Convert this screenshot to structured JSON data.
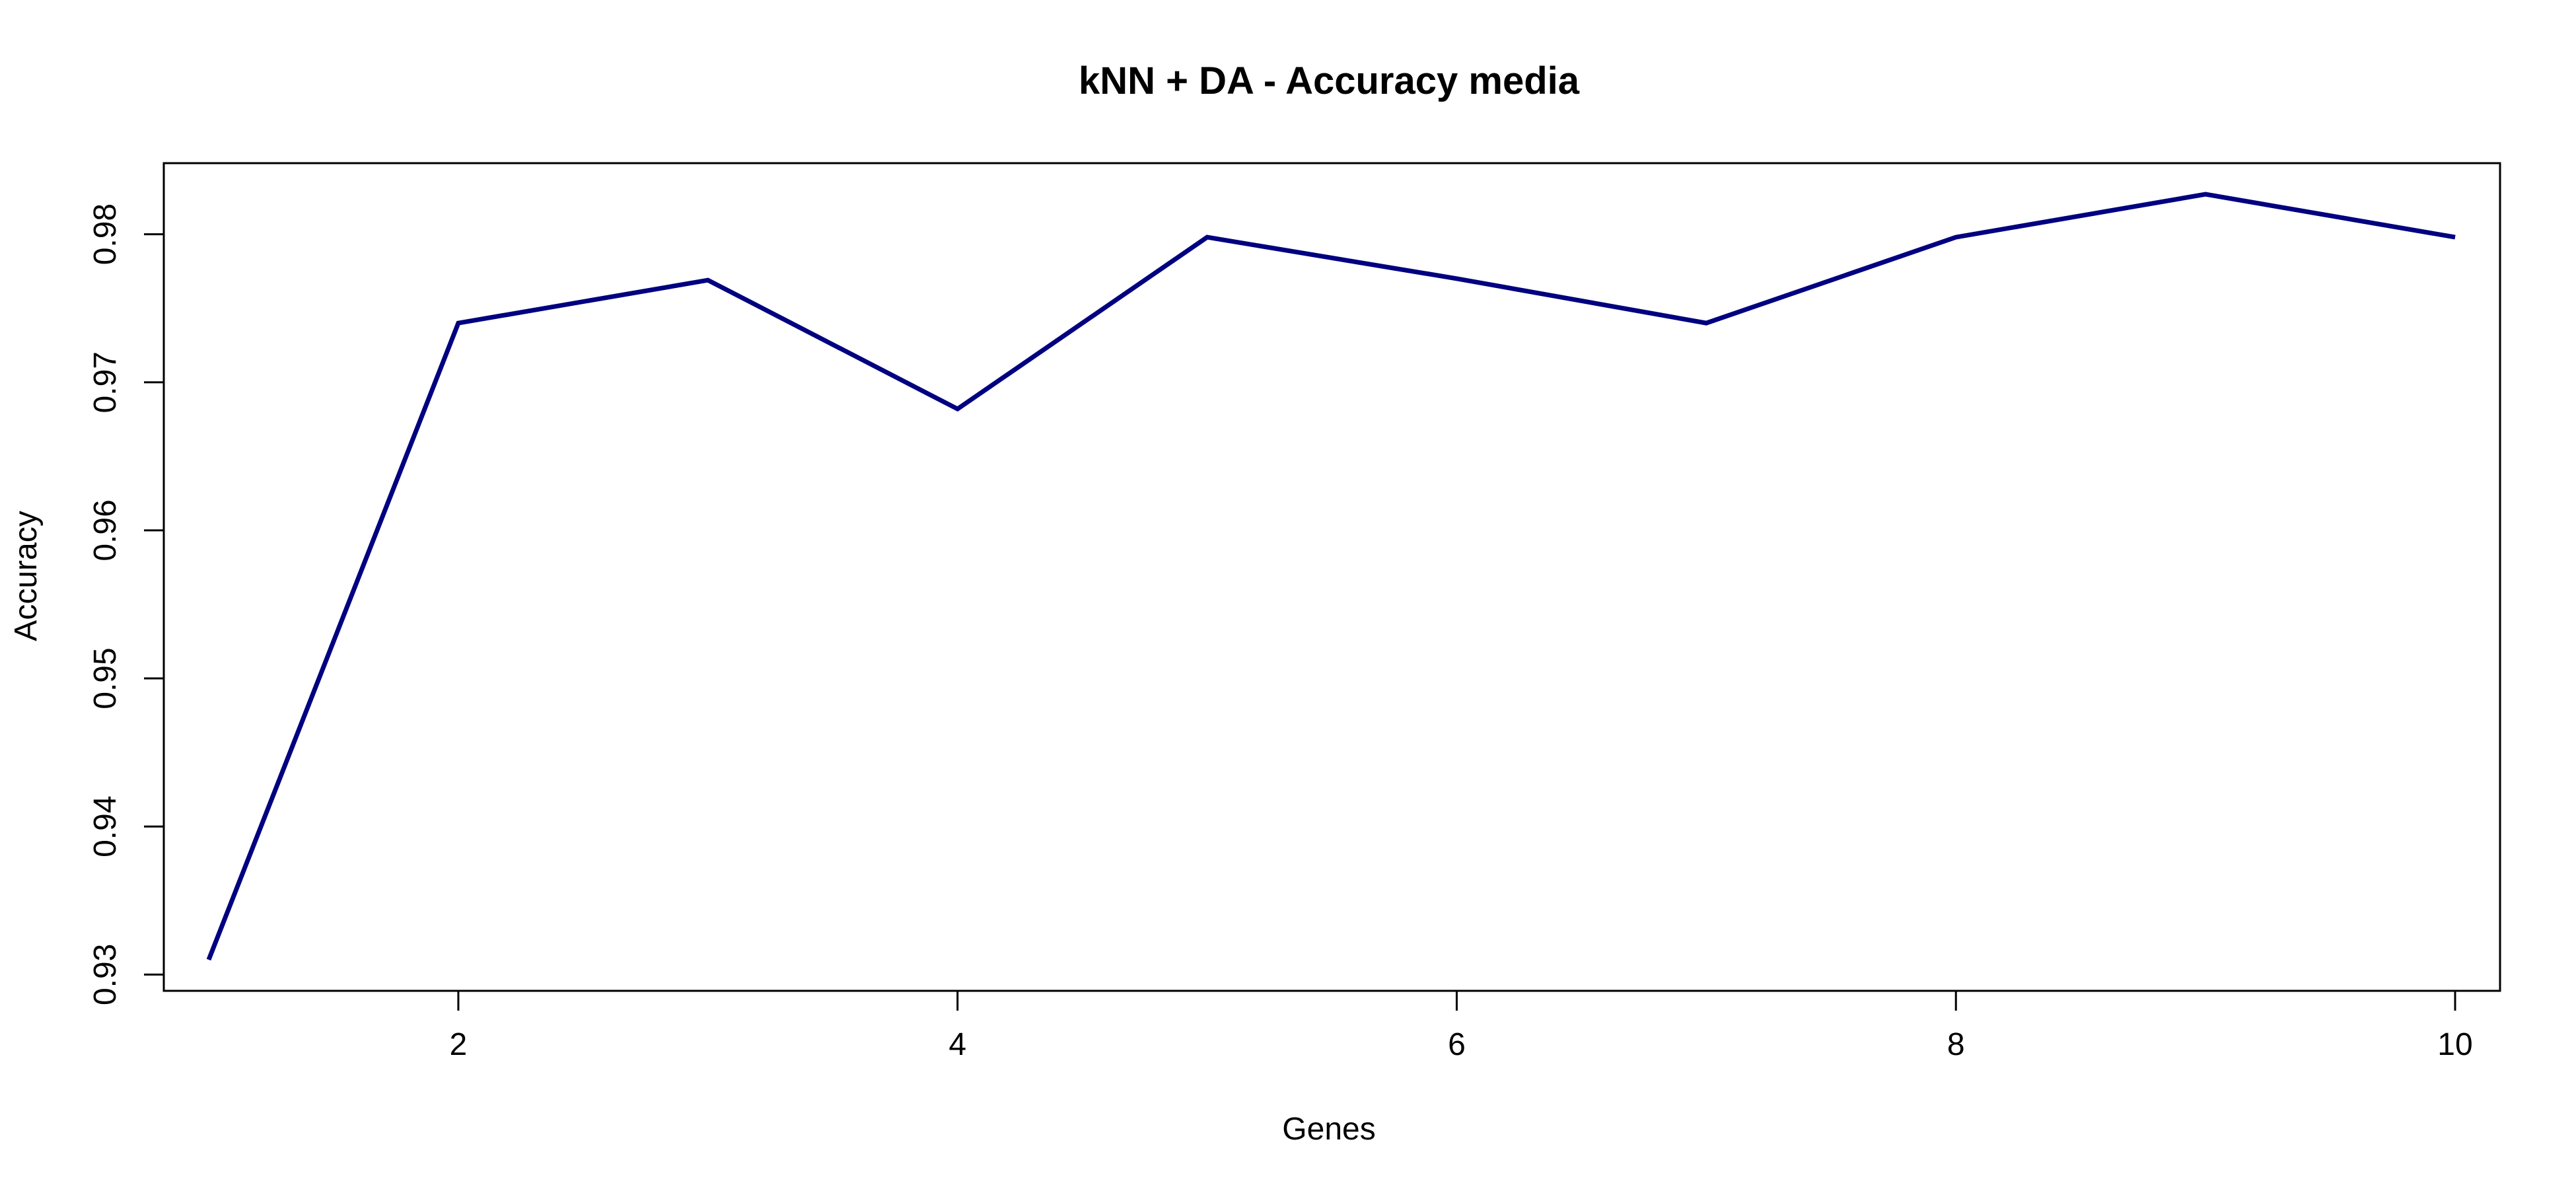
{
  "chart_data": {
    "type": "line",
    "title": "kNN + DA - Accuracy media",
    "xlabel": "Genes",
    "ylabel": "Accuracy",
    "x": [
      1,
      2,
      3,
      4,
      5,
      6,
      7,
      8,
      9,
      10
    ],
    "series": [
      {
        "values": [
          0.931,
          0.974,
          0.9769,
          0.9682,
          0.9798,
          0.977,
          0.974,
          0.9798,
          0.9827,
          0.9798
        ],
        "color": "#000080"
      }
    ],
    "xlim": [
      0.82,
      10.18
    ],
    "ylim": [
      0.9289,
      0.9848
    ],
    "x_ticks": [
      2,
      4,
      6,
      8,
      10
    ],
    "x_tick_labels": [
      "2",
      "4",
      "6",
      "8",
      "10"
    ],
    "y_ticks": [
      0.93,
      0.94,
      0.95,
      0.96,
      0.97,
      0.98
    ],
    "y_tick_labels": [
      "0.93",
      "0.94",
      "0.95",
      "0.96",
      "0.97",
      "0.98"
    ],
    "grid": false,
    "legend": "none",
    "axis_color": "#000000",
    "background": "#ffffff"
  }
}
